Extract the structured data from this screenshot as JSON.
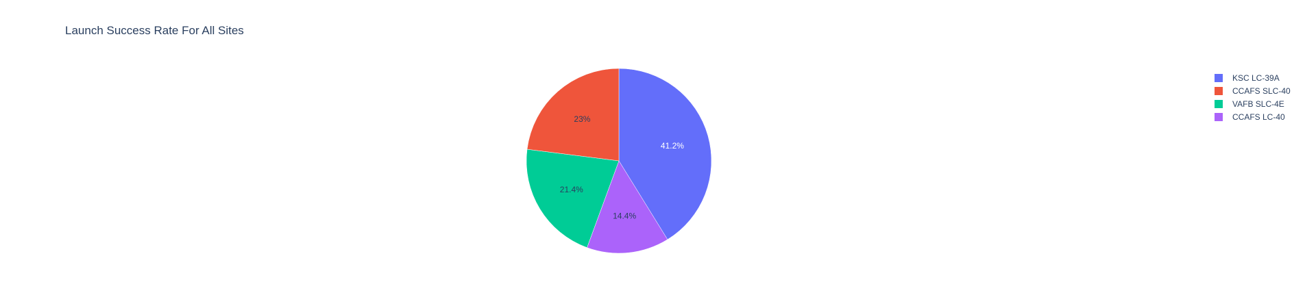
{
  "chart_data": {
    "type": "pie",
    "title": "Launch Success Rate For All Sites",
    "slices": [
      {
        "label": "KSC LC-39A",
        "percent": 41.2,
        "display": "41.2%",
        "color": "#636efa",
        "text_color": "#ffffff"
      },
      {
        "label": "CCAFS LC-40",
        "percent": 14.4,
        "display": "14.4%",
        "color": "#ab63fa",
        "text_color": "#2a3f5f"
      },
      {
        "label": "VAFB SLC-4E",
        "percent": 21.4,
        "display": "21.4%",
        "color": "#00cc96",
        "text_color": "#2a3f5f"
      },
      {
        "label": "CCAFS SLC-40",
        "percent": 23.0,
        "display": "23%",
        "color": "#ef553b",
        "text_color": "#2a3f5f"
      }
    ],
    "legend": {
      "position": "top-right",
      "order": [
        "KSC LC-39A",
        "CCAFS SLC-40",
        "VAFB SLC-4E",
        "CCAFS LC-40"
      ]
    },
    "direction": "clockwise",
    "start": "12 o'clock"
  }
}
